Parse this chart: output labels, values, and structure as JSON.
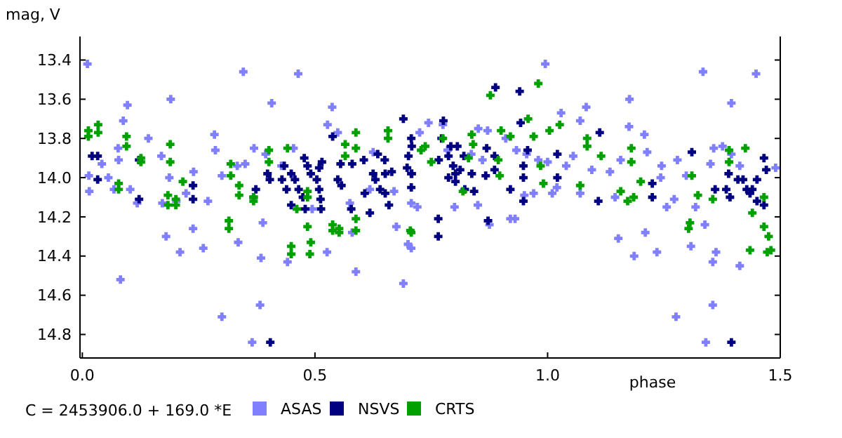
{
  "chart_data": {
    "type": "scatter",
    "xlabel": "phase",
    "ylabel": "mag, V",
    "annotations": [
      "C = 2453906.0 + 169.0 *E"
    ],
    "xlim": [
      -0.005,
      1.5
    ],
    "xticks": [
      {
        "value": 0,
        "label": "0.0"
      },
      {
        "value": 0.5,
        "label": "0.5"
      },
      {
        "value": 1,
        "label": "1.0"
      },
      {
        "value": 1.5,
        "label": "1.5"
      }
    ],
    "ylim": [
      14.92,
      13.28
    ],
    "yticks": [
      13.4,
      13.6,
      13.8,
      {
        "value": 14,
        "label": "14.0"
      },
      14.2,
      14.4,
      14.6,
      14.8
    ],
    "grid": false,
    "legend": "bottom",
    "marker": "cross",
    "series": [
      {
        "name": "ASAS",
        "color": "#8080ff",
        "x": [
          0.011,
          0.097,
          0.19,
          0.346,
          0.464,
          0.407,
          0.3,
          0.365,
          0.382,
          0.082,
          0.588,
          0.69,
          0.26,
          0.21,
          0.18,
          0.238,
          0.335,
          0.388,
          0.384,
          0.441,
          0.526,
          0.58,
          0.014,
          0.015,
          0.056,
          0.068,
          0.103,
          0.118,
          0.042,
          0.078,
          0.077,
          0.088,
          0.142,
          0.17,
          0.187,
          0.172,
          0.202,
          0.223,
          0.239,
          0.27,
          0.284,
          0.286,
          0.3,
          0.333,
          0.35,
          0.369,
          0.394,
          0.428,
          0.454,
          0.494,
          0.527,
          0.537,
          0.549,
          0.575,
          0.625,
          0.618,
          0.67,
          0.675,
          0.7,
          0.72,
          0.725,
          0.995,
          1.334,
          1.448,
          1.176,
          1.083,
          1.029,
          1.07,
          0.851,
          0.871,
          1.175,
          1.208,
          1.395,
          1.357,
          1.376,
          1.395,
          1.413,
          1.35,
          1.279,
          1.245,
          1.214,
          1.157,
          1.134,
          1.095,
          1.055,
          1.04,
          1.0,
          0.98,
          0.955,
          0.933,
          0.91,
          0.86,
          0.836,
          0.785,
          0.744,
          0.775,
          0.707,
          0.707,
          0.8,
          0.85,
          0.875,
          0.92,
          0.93,
          0.95,
          0.97,
          1.01,
          1.02,
          1.07,
          1.145,
          1.152,
          1.186,
          1.21,
          1.235,
          1.256,
          1.272,
          1.243,
          1.298,
          1.308,
          1.318,
          1.338,
          1.355,
          1.362,
          1.355,
          1.276,
          1.34,
          1.413,
          1.49
        ],
        "values": [
          13.42,
          13.63,
          13.6,
          13.46,
          13.47,
          13.62,
          14.71,
          14.84,
          14.65,
          14.52,
          14.48,
          14.54,
          14.36,
          14.38,
          14.3,
          14.26,
          14.33,
          14.23,
          14.41,
          14.43,
          14.38,
          14.28,
          13.99,
          14.07,
          14.0,
          14.06,
          14.06,
          14.13,
          13.93,
          13.91,
          13.85,
          13.71,
          13.8,
          13.89,
          14.0,
          14.13,
          14.12,
          14.08,
          13.97,
          14.12,
          13.78,
          13.86,
          13.99,
          13.94,
          13.93,
          13.85,
          13.88,
          13.94,
          13.85,
          14.16,
          13.73,
          13.64,
          13.77,
          14.13,
          13.87,
          14.06,
          14.07,
          14.25,
          14.34,
          14.15,
          13.77,
          13.42,
          13.46,
          13.47,
          13.6,
          13.64,
          13.67,
          13.71,
          13.75,
          13.76,
          13.74,
          13.78,
          13.62,
          13.85,
          13.84,
          13.88,
          13.94,
          13.93,
          13.91,
          13.94,
          13.87,
          13.91,
          13.97,
          13.96,
          13.89,
          13.94,
          13.92,
          13.91,
          13.88,
          13.86,
          13.8,
          13.91,
          13.88,
          13.86,
          13.72,
          13.73,
          14.13,
          14.36,
          14.15,
          14.14,
          14.24,
          14.21,
          14.21,
          14.09,
          14.08,
          14.08,
          14.05,
          14.08,
          14.1,
          14.31,
          14.4,
          14.28,
          14.38,
          14.15,
          14.11,
          14.0,
          13.99,
          14.35,
          14.15,
          14.24,
          14.43,
          14.38,
          14.65,
          14.71,
          14.84,
          14.45,
          13.95
        ]
      },
      {
        "name": "NSVS",
        "color": "#000080",
        "x": [
          0.021,
          0.033,
          0.033,
          0.122,
          0.122,
          0.238,
          0.238,
          0.373,
          0.368,
          0.398,
          0.403,
          0.434,
          0.429,
          0.439,
          0.449,
          0.457,
          0.465,
          0.474,
          0.449,
          0.479,
          0.477,
          0.484,
          0.491,
          0.504,
          0.509,
          0.512,
          0.509,
          0.515,
          0.513,
          0.538,
          0.555,
          0.549,
          0.557,
          0.58,
          0.578,
          0.605,
          0.607,
          0.618,
          0.625,
          0.63,
          0.635,
          0.65,
          0.651,
          0.64,
          0.659,
          0.651,
          0.665,
          0.701,
          0.698,
          0.708,
          0.708,
          0.404,
          0.69,
          0.707,
          0.707,
          0.776,
          0.772,
          0.792,
          0.806,
          0.787,
          0.82,
          0.766,
          0.797,
          0.812,
          0.802,
          0.837,
          0.802,
          0.787,
          0.822,
          0.842,
          0.707,
          0.867,
          0.888,
          0.94,
          0.869,
          0.886,
          0.942,
          0.957,
          0.948,
          0.948,
          0.92,
          0.886,
          0.872,
          0.948,
          1.021,
          1.021,
          1.109,
          1.112,
          1.225,
          1.225,
          1.31,
          1.36,
          1.384,
          1.392,
          1.389,
          1.409,
          1.42,
          1.428,
          1.44,
          1.45,
          1.435,
          1.465,
          1.47,
          1.465,
          1.45,
          1.395,
          0.765,
          0.765
        ],
        "values": [
          13.89,
          13.89,
          14.01,
          13.91,
          14.11,
          14.04,
          14.11,
          14.06,
          14.1,
          13.98,
          14.01,
          13.94,
          14.01,
          14.06,
          13.98,
          14.01,
          14.06,
          14.1,
          14.14,
          14.16,
          13.9,
          13.94,
          13.98,
          14.01,
          14.06,
          14.11,
          13.95,
          13.92,
          14.16,
          13.79,
          13.93,
          14.01,
          14.04,
          13.93,
          14.16,
          13.91,
          14.08,
          14.18,
          13.98,
          14.01,
          13.88,
          13.91,
          13.98,
          14.06,
          14.14,
          14.08,
          13.97,
          13.89,
          13.95,
          13.98,
          13.84,
          14.84,
          13.7,
          13.8,
          13.98,
          13.71,
          13.8,
          13.84,
          13.84,
          13.89,
          13.89,
          13.91,
          13.94,
          13.96,
          13.98,
          13.98,
          14.02,
          14.0,
          14.06,
          14.07,
          14.05,
          13.99,
          13.54,
          13.56,
          13.85,
          13.89,
          13.72,
          13.86,
          13.94,
          14.0,
          14.06,
          13.96,
          14.22,
          14.12,
          14.0,
          13.88,
          14.12,
          13.77,
          14.03,
          14.1,
          13.87,
          14.06,
          14.06,
          14.1,
          13.98,
          14.01,
          14.01,
          14.06,
          14.06,
          14.12,
          14.08,
          13.9,
          13.96,
          14.14,
          14.01,
          14.84,
          14.21,
          14.3
        ]
      },
      {
        "name": "CRTS",
        "color": "#00a000",
        "x": [
          0.013,
          0.013,
          0.034,
          0.034,
          0.078,
          0.078,
          0.095,
          0.095,
          0.126,
          0.126,
          0.184,
          0.184,
          0.189,
          0.189,
          0.201,
          0.201,
          0.216,
          0.319,
          0.319,
          0.315,
          0.315,
          0.337,
          0.337,
          0.368,
          0.368,
          0.401,
          0.401,
          0.441,
          0.449,
          0.449,
          0.461,
          0.484,
          0.484,
          0.484,
          0.489,
          0.491,
          0.538,
          0.538,
          0.552,
          0.552,
          0.565,
          0.565,
          0.588,
          0.588,
          0.588,
          0.588,
          0.657,
          0.657,
          0.705,
          0.728,
          0.707,
          0.737,
          0.75,
          0.775,
          0.818,
          0.83,
          0.837,
          0.84,
          0.877,
          0.894,
          0.897,
          0.9,
          0.92,
          0.958,
          0.97,
          0.98,
          0.985,
          0.991,
          1.004,
          1.026,
          1.07,
          1.085,
          1.085,
          1.115,
          1.18,
          1.18,
          1.157,
          1.172,
          1.185,
          1.2,
          1.31,
          1.306,
          1.303,
          1.323,
          1.355,
          1.39,
          1.39,
          1.425,
          1.435,
          1.44,
          1.465,
          1.465,
          1.475,
          1.472,
          1.48
        ],
        "values": [
          13.76,
          13.79,
          13.73,
          13.77,
          14.03,
          14.06,
          13.79,
          13.84,
          13.9,
          13.92,
          14.09,
          14.14,
          13.83,
          13.92,
          14.11,
          14.14,
          14.02,
          13.93,
          13.99,
          14.22,
          14.26,
          14.09,
          14.04,
          14.1,
          14.12,
          13.86,
          13.92,
          13.85,
          14.35,
          14.39,
          14.16,
          14.07,
          14.1,
          14.25,
          14.39,
          14.33,
          14.24,
          14.27,
          14.26,
          14.28,
          13.83,
          13.89,
          13.77,
          13.85,
          14.21,
          14.27,
          13.76,
          13.8,
          14.27,
          13.86,
          14.28,
          13.84,
          13.92,
          13.8,
          14.07,
          13.9,
          13.78,
          13.83,
          13.58,
          13.91,
          13.99,
          13.76,
          13.79,
          13.7,
          13.79,
          13.52,
          13.94,
          14.03,
          13.76,
          13.73,
          14.04,
          13.8,
          13.84,
          13.89,
          13.85,
          13.92,
          14.07,
          14.12,
          14.1,
          14.02,
          13.99,
          14.23,
          14.26,
          14.09,
          14.11,
          13.86,
          13.92,
          13.85,
          14.37,
          14.18,
          14.1,
          14.25,
          14.3,
          14.38,
          14.37
        ]
      }
    ]
  }
}
